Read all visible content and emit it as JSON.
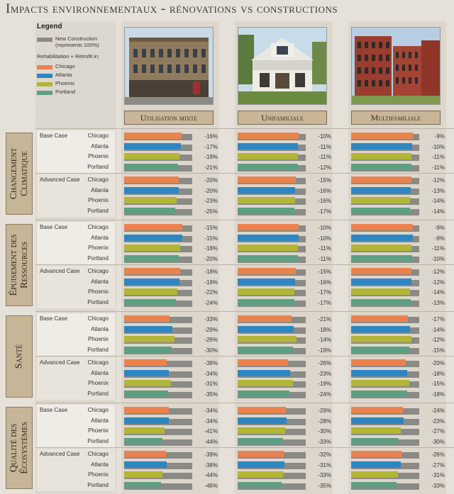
{
  "title": "Impacts environnementaux - rénovations vs constructions",
  "legend": {
    "title": "Legend",
    "new_construction": "New Construction (represents 100%)",
    "subtitle": "Rehabilitation + Retrofit in:",
    "cities": [
      "Chicago",
      "Atlanta",
      "Phoenix",
      "Portland"
    ]
  },
  "colors": {
    "new_construction": "#8a8a86",
    "Chicago": "#e8834f",
    "Atlanta": "#2e86c1",
    "Phoenix": "#b3b536",
    "Portland": "#5e9e82"
  },
  "columns": [
    {
      "label": "Utilisation mixte",
      "photo": "mixed-use-building-photo"
    },
    {
      "label": "Unifamiliale",
      "photo": "single-family-house-photo"
    },
    {
      "label": "Multifamiliale",
      "photo": "multifamily-building-photo"
    }
  ],
  "chart_data": {
    "type": "bar",
    "unit": "% vs new construction",
    "categories_per_block": [
      "Chicago",
      "Atlanta",
      "Phoenix",
      "Portland"
    ],
    "sections": [
      {
        "name": "Changement Climatique",
        "cases": [
          {
            "case": "Base Case",
            "values": [
              [
                -16,
                -17,
                -19,
                -21
              ],
              [
                -10,
                -11,
                -11,
                -12
              ],
              [
                -9,
                -10,
                -11,
                -11
              ]
            ]
          },
          {
            "case": "Advanced Case",
            "values": [
              [
                -20,
                -20,
                -23,
                -25
              ],
              [
                -15,
                -16,
                -16,
                -17
              ],
              [
                -12,
                -13,
                -14,
                -14
              ]
            ]
          }
        ]
      },
      {
        "name": "Épuisement des Ressources",
        "cases": [
          {
            "case": "Base Case",
            "values": [
              [
                -15,
                -15,
                -18,
                -20
              ],
              [
                -10,
                -10,
                -11,
                -11
              ],
              [
                -9,
                -9,
                -11,
                -10
              ]
            ]
          },
          {
            "case": "Advanced Case",
            "values": [
              [
                -18,
                -19,
                -22,
                -24
              ],
              [
                -15,
                -16,
                -17,
                -17
              ],
              [
                -12,
                -12,
                -14,
                -13
              ]
            ]
          }
        ]
      },
      {
        "name": "Santé",
        "cases": [
          {
            "case": "Base Case",
            "values": [
              [
                -33,
                -29,
                -26,
                -30
              ],
              [
                -21,
                -18,
                -14,
                -19
              ],
              [
                -17,
                -14,
                -12,
                -15
              ]
            ]
          },
          {
            "case": "Advanced Case",
            "values": [
              [
                -38,
                -34,
                -31,
                -35
              ],
              [
                -26,
                -23,
                -19,
                -24
              ],
              [
                -20,
                -18,
                -15,
                -18
              ]
            ]
          }
        ]
      },
      {
        "name": "Qualité des Écosystèmes",
        "cases": [
          {
            "case": "Base Case",
            "values": [
              [
                -34,
                -34,
                -41,
                -44
              ],
              [
                -29,
                -28,
                -30,
                -33
              ],
              [
                -24,
                -23,
                -27,
                -30
              ]
            ]
          },
          {
            "case": "Advanced Case",
            "values": [
              [
                -39,
                -38,
                -44,
                -46
              ],
              [
                -32,
                -31,
                -33,
                -35
              ],
              [
                -26,
                -27,
                -31,
                -33
              ]
            ]
          }
        ]
      }
    ]
  }
}
